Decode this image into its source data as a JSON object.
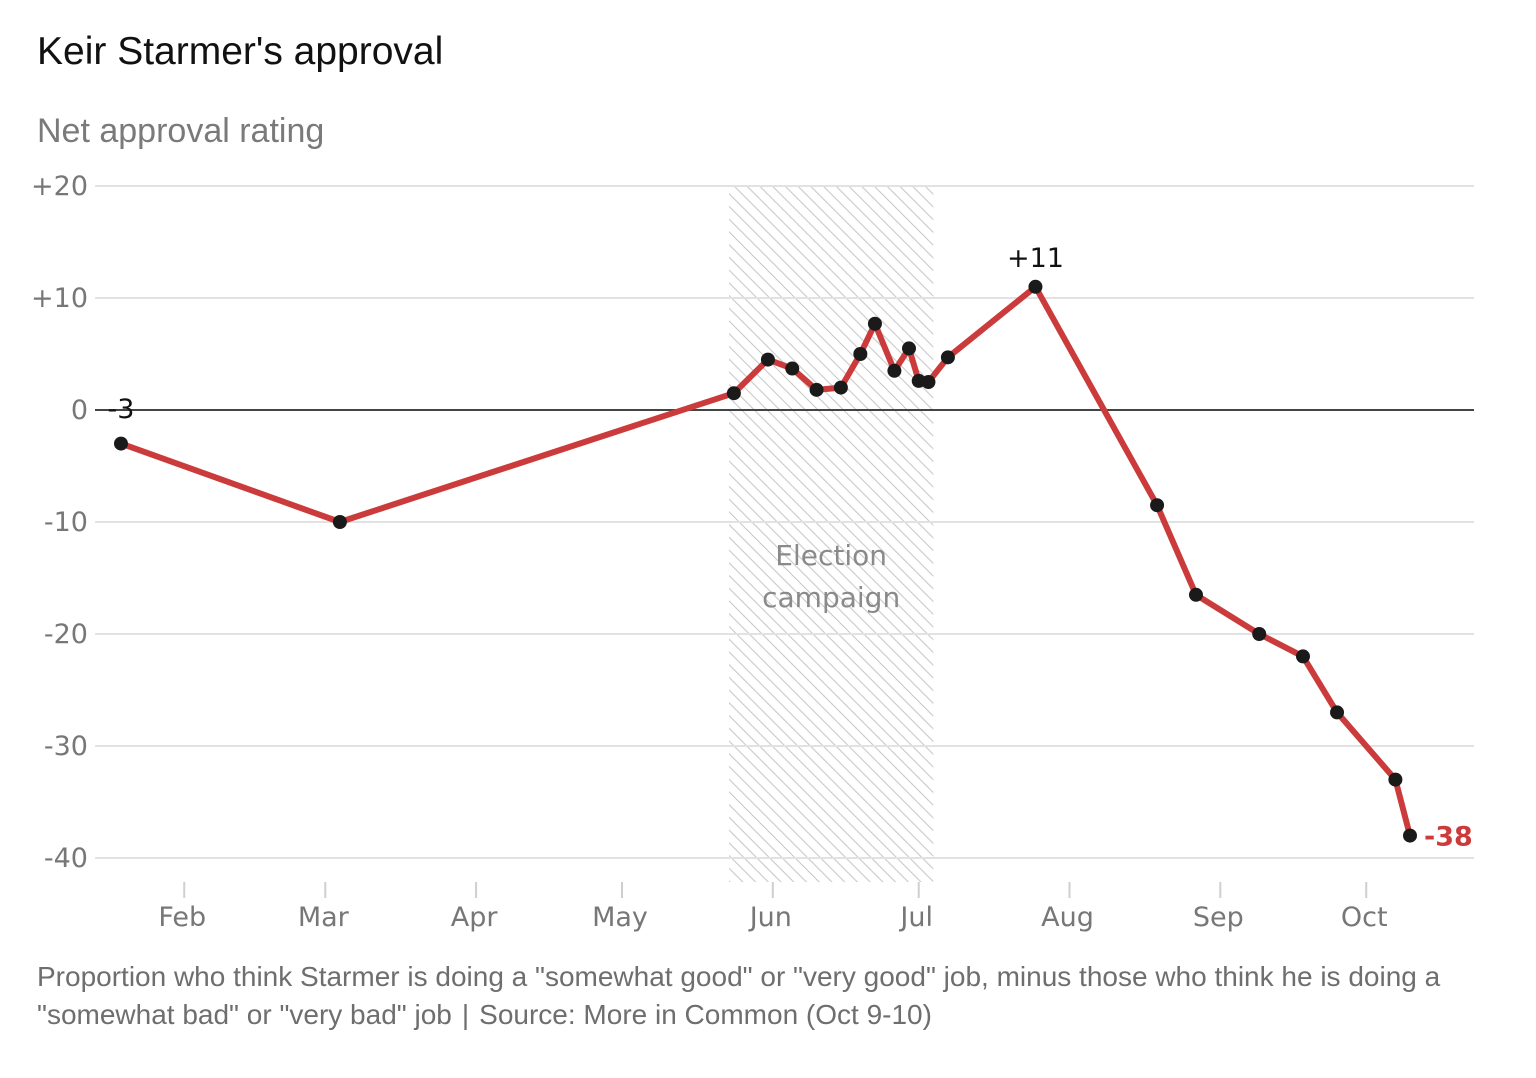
{
  "chart_data": {
    "type": "line",
    "title": "Keir Starmer's approval",
    "subtitle": "Net approval rating",
    "ylim": [
      -40,
      20
    ],
    "yticks": [
      {
        "value": 20,
        "label": "+20"
      },
      {
        "value": 10,
        "label": "+10"
      },
      {
        "value": 0,
        "label": "0"
      },
      {
        "value": -10,
        "label": "-10"
      },
      {
        "value": -20,
        "label": "-20"
      },
      {
        "value": -30,
        "label": "-30"
      },
      {
        "value": -40,
        "label": "-40"
      }
    ],
    "xlim": [
      "2024-01-14",
      "2024-10-20"
    ],
    "xticks": [
      {
        "date": "2024-02-01",
        "label": "Feb"
      },
      {
        "date": "2024-03-01",
        "label": "Mar"
      },
      {
        "date": "2024-04-01",
        "label": "Apr"
      },
      {
        "date": "2024-05-01",
        "label": "May"
      },
      {
        "date": "2024-06-01",
        "label": "Jun"
      },
      {
        "date": "2024-07-01",
        "label": "Jul"
      },
      {
        "date": "2024-08-01",
        "label": "Aug"
      },
      {
        "date": "2024-09-01",
        "label": "Sep"
      },
      {
        "date": "2024-10-01",
        "label": "Oct"
      }
    ],
    "grid": true,
    "shaded_period": {
      "start": "2024-05-23",
      "end": "2024-07-04",
      "label_lines": [
        "Election",
        "campaign"
      ]
    },
    "series": [
      {
        "color": "#cc3b3b",
        "points": [
          {
            "x": "2024-01-19",
            "y": -3
          },
          {
            "x": "2024-03-04",
            "y": -10
          },
          {
            "x": "2024-05-24",
            "y": 1.5
          },
          {
            "x": "2024-05-31",
            "y": 4.5
          },
          {
            "x": "2024-06-05",
            "y": 3.7
          },
          {
            "x": "2024-06-10",
            "y": 1.8
          },
          {
            "x": "2024-06-15",
            "y": 2
          },
          {
            "x": "2024-06-19",
            "y": 5
          },
          {
            "x": "2024-06-22",
            "y": 7.7
          },
          {
            "x": "2024-06-26",
            "y": 3.5
          },
          {
            "x": "2024-06-29",
            "y": 5.5
          },
          {
            "x": "2024-07-01",
            "y": 2.6
          },
          {
            "x": "2024-07-03",
            "y": 2.5
          },
          {
            "x": "2024-07-07",
            "y": 4.7
          },
          {
            "x": "2024-07-25",
            "y": 11
          },
          {
            "x": "2024-08-19",
            "y": -8.5
          },
          {
            "x": "2024-08-27",
            "y": -16.5
          },
          {
            "x": "2024-09-09",
            "y": -20
          },
          {
            "x": "2024-09-18",
            "y": -22
          },
          {
            "x": "2024-09-25",
            "y": -27
          },
          {
            "x": "2024-10-07",
            "y": -33
          },
          {
            "x": "2024-10-10",
            "y": -38
          }
        ]
      }
    ],
    "annotations": [
      {
        "label": "-3",
        "point_index": 0,
        "color": "#111111"
      },
      {
        "label": "+11",
        "point_index": 14,
        "color": "#111111"
      },
      {
        "label": "-38",
        "point_index": 21,
        "color": "#cc3b3b"
      }
    ]
  },
  "footer": {
    "note": "Proportion who think Starmer is doing a \"somewhat good\" or \"very good\" job, minus those who think he is doing a \"somewhat bad\" or \"very bad\" job",
    "separator": "|",
    "source": "Source: More in Common (Oct 9-10)"
  }
}
